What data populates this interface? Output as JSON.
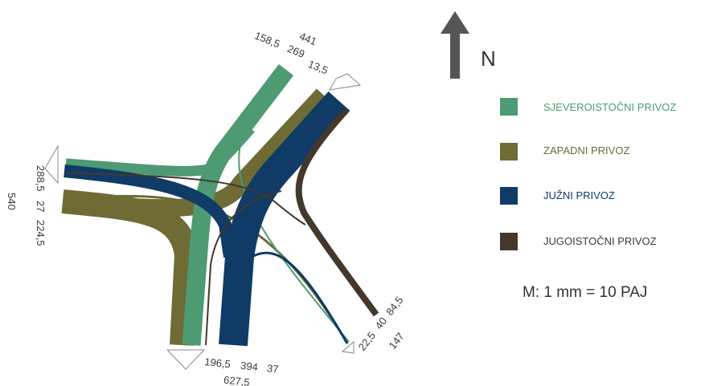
{
  "colors": {
    "sjeveroistocni": "#4d9a73",
    "zapadni": "#6e6b35",
    "juzni": "#0f3b66",
    "jugoistocni": "#43382b"
  },
  "north": {
    "label": "N",
    "icon": "north-arrow-icon"
  },
  "legend": [
    {
      "label": "SJEVEROISTOČNI PRIVOZ",
      "color": "#4d9a73"
    },
    {
      "label": "ZAPADNI PRIVOZ",
      "color": "#6e6b35"
    },
    {
      "label": "JUŽNI PRIVOZ",
      "color": "#0f3b66"
    },
    {
      "label": "JUGOISTOČNI PRIVOZ",
      "color": "#43382b"
    }
  ],
  "scale_note": "M: 1 mm = 10 PAJ",
  "approaches": {
    "northeast": {
      "total": "441",
      "values": [
        "158,5",
        "269",
        "13,5"
      ]
    },
    "west": {
      "total": "540",
      "values": [
        "288,5",
        "27",
        "224,5"
      ]
    },
    "south": {
      "total": "627,5",
      "values": [
        "196,5",
        "394",
        "37"
      ]
    },
    "southeast": {
      "total": "147",
      "values": [
        "22,5",
        "40",
        "84,5"
      ]
    }
  }
}
